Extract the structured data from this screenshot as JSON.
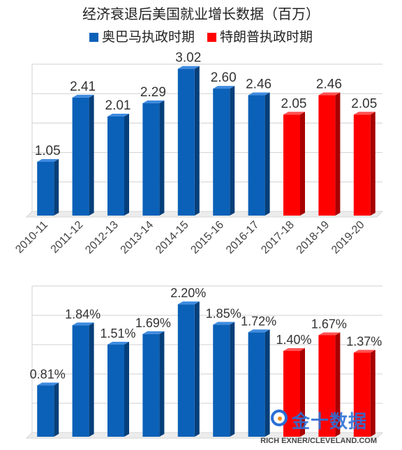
{
  "title": "经济衰退后美国就业增长数据（百万）",
  "legend": [
    {
      "label": "奥巴马执政时期",
      "color": "#0b61b8"
    },
    {
      "label": "特朗普执政时期",
      "color": "#ff0000"
    }
  ],
  "watermark": "金十数据",
  "credit": "RICH EXNER/CLEVELAND.COM",
  "chart_data": [
    {
      "type": "bar",
      "categories": [
        "2010-11",
        "2011-12",
        "2012-13",
        "2013-14",
        "2014-15",
        "2015-16",
        "2016-17",
        "2017-18",
        "2018-19",
        "2019-20"
      ],
      "values": [
        1.05,
        2.41,
        2.01,
        2.29,
        3.02,
        2.6,
        2.46,
        2.05,
        2.46,
        2.05
      ],
      "labels": [
        "1.05",
        "2.41",
        "2.01",
        "2.29",
        "3.02",
        "2.60",
        "2.46",
        "2.05",
        "2.46",
        "2.05"
      ],
      "groups": [
        "obama",
        "obama",
        "obama",
        "obama",
        "obama",
        "obama",
        "obama",
        "trump",
        "trump",
        "trump"
      ],
      "ylim": [
        0,
        3.0
      ],
      "grid": true
    },
    {
      "type": "bar",
      "categories": [
        "2010-11",
        "2011-12",
        "2012-13",
        "2013-14",
        "2014-15",
        "2015-16",
        "2016-17",
        "2017-18",
        "2018-19",
        "2019-20"
      ],
      "values": [
        0.81,
        1.84,
        1.51,
        1.69,
        2.2,
        1.85,
        1.72,
        1.4,
        1.67,
        1.37
      ],
      "labels": [
        "0.81%",
        "1.84%",
        "1.51%",
        "1.69%",
        "2.20%",
        "1.85%",
        "1.72%",
        "1.40%",
        "1.67%",
        "1.37%"
      ],
      "groups": [
        "obama",
        "obama",
        "obama",
        "obama",
        "obama",
        "obama",
        "obama",
        "trump",
        "trump",
        "trump"
      ],
      "ylim": [
        0,
        2.25
      ],
      "grid": true
    }
  ]
}
